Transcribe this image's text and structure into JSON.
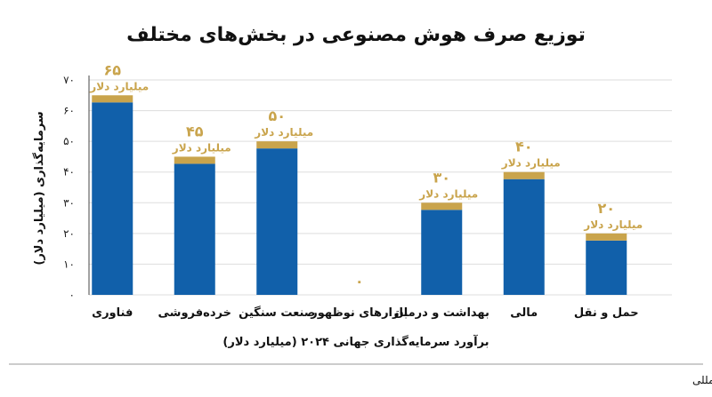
{
  "chart_data": {
    "type": "bar",
    "title": "توزیع صرف هوش مصنوعی در بخش‌های مختلف",
    "categories": [
      "فناوری",
      "خرده‌فروشی",
      "صنعت سنگین",
      "بازارهای نوظهور",
      "بهداشت و درمان",
      "مالی",
      "حمل و نقل"
    ],
    "values": [
      65,
      45,
      50,
      0,
      30,
      40,
      20
    ],
    "value_labels": [
      "۶۵",
      "۴۵",
      "۵۰",
      "۰",
      "۳۰",
      "۴۰",
      "۲۰"
    ],
    "unit_label": "میلیارد دلار",
    "xlabel": "برآورد سرمایه‌گذاری جهانی ۲۰۲۴ (میلیارد دلار)",
    "ylabel": "سرمایه‌گذاری (میلیارد دلار)",
    "ylim": [
      0,
      70
    ],
    "yticks": [
      0,
      10,
      20,
      30,
      40,
      50,
      60,
      70
    ],
    "ytick_labels": [
      "۰",
      "۱۰",
      "۲۰",
      "۳۰",
      "۴۰",
      "۵۰",
      "۶۰",
      "۷۰"
    ],
    "grid": true,
    "colors": {
      "bar": "#1160aa",
      "cap": "#c9a44c",
      "grid": "#dddddd",
      "axis": "#444444"
    }
  },
  "source": "منبع: تحلیل مالی بین‌المللی"
}
